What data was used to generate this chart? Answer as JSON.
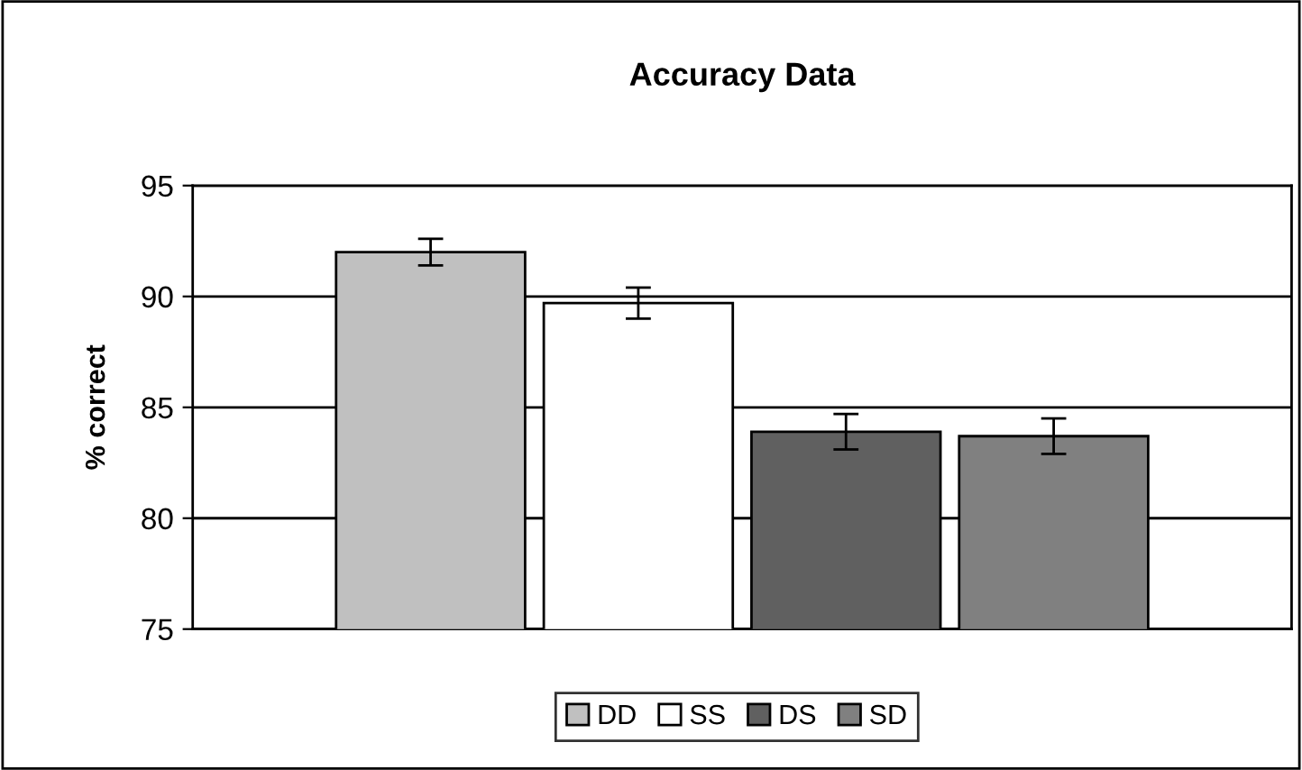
{
  "chart_data": {
    "type": "bar",
    "title": "Accuracy Data",
    "ylabel": "% correct",
    "categories": [
      null
    ],
    "series": [
      {
        "name": "DD",
        "color": "#c0c0c0",
        "values": [
          92.0
        ],
        "errors": [
          0.6
        ]
      },
      {
        "name": "SS",
        "color": "#ffffff",
        "values": [
          89.7
        ],
        "errors": [
          0.7
        ]
      },
      {
        "name": "DS",
        "color": "#606060",
        "values": [
          83.9
        ],
        "errors": [
          0.8
        ]
      },
      {
        "name": "SD",
        "color": "#808080",
        "values": [
          83.7
        ],
        "errors": [
          0.8
        ]
      }
    ],
    "ylim": [
      75,
      95
    ],
    "yticks": [
      75,
      80,
      85,
      90,
      95
    ],
    "grid": "y",
    "legend": "bottom",
    "tick_labels": "y"
  }
}
